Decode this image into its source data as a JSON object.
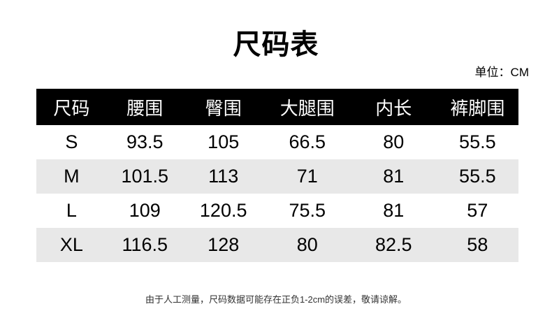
{
  "header": {
    "title": "尺码表",
    "unit_label": "单位：CM"
  },
  "footer": {
    "note": "由于人工测量，尺码数据可能存在正负1-2cm的误差，敬请谅解。"
  },
  "colors": {
    "header_bg": "#000000",
    "header_text": "#ffffff",
    "row_alt_bg": "#e8e8e8",
    "body_text": "#000000",
    "note_text": "#333333"
  },
  "chart_data": {
    "type": "table",
    "title": "尺码表",
    "unit": "CM",
    "columns": [
      "尺码",
      "腰围",
      "臀围",
      "大腿围",
      "内长",
      "裤脚围"
    ],
    "rows": [
      [
        "S",
        "93.5",
        "105",
        "66.5",
        "80",
        "55.5"
      ],
      [
        "M",
        "101.5",
        "113",
        "71",
        "81",
        "55.5"
      ],
      [
        "L",
        "109",
        "120.5",
        "75.5",
        "81",
        "57"
      ],
      [
        "XL",
        "116.5",
        "128",
        "80",
        "82.5",
        "58"
      ]
    ],
    "note": "由于人工测量，尺码数据可能存在正负1-2cm的误差，敬请谅解。"
  }
}
